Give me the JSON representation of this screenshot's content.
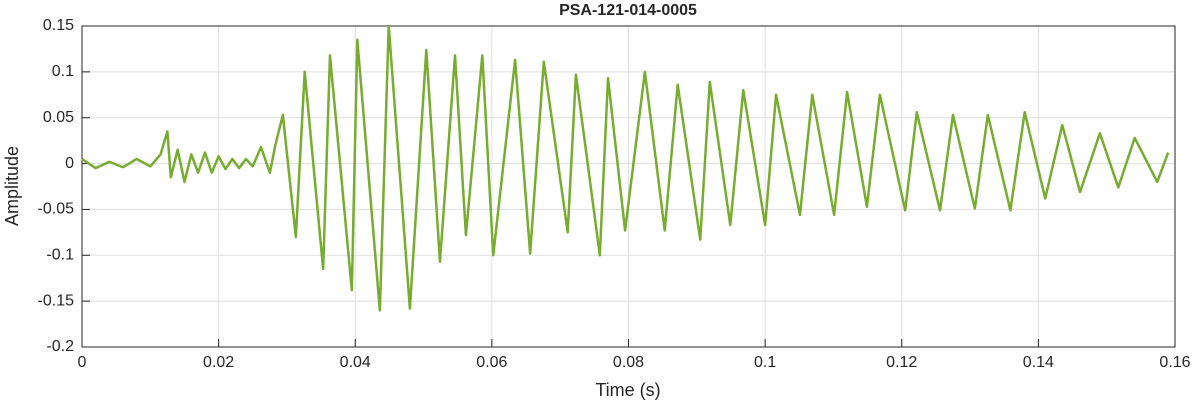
{
  "chart_data": {
    "type": "line",
    "title": "PSA-121-014-0005",
    "xlabel": "Time (s)",
    "ylabel": "Amplitude",
    "series": [
      {
        "name": "Amplitude",
        "color": "#77ac30",
        "x": [
          0,
          0.002,
          0.004,
          0.006,
          0.008,
          0.01,
          0.0115,
          0.0125,
          0.013,
          0.014,
          0.015,
          0.016,
          0.017,
          0.018,
          0.019,
          0.02,
          0.021,
          0.022,
          0.023,
          0.024,
          0.025,
          0.0262,
          0.0275,
          0.0283,
          0.0294,
          0.0313,
          0.0326,
          0.0353,
          0.0363,
          0.0395,
          0.0403,
          0.0436,
          0.0449,
          0.048,
          0.0504,
          0.0524,
          0.0546,
          0.0562,
          0.0586,
          0.0602,
          0.0634,
          0.0656,
          0.0676,
          0.0711,
          0.0723,
          0.0758,
          0.077,
          0.0795,
          0.0824,
          0.0853,
          0.0872,
          0.0905,
          0.0919,
          0.0949,
          0.0968,
          0.1,
          0.1016,
          0.1051,
          0.1069,
          0.1101,
          0.112,
          0.1149,
          0.1168,
          0.1205,
          0.1222,
          0.1256,
          0.1275,
          0.1307,
          0.1326,
          0.1359,
          0.138,
          0.141,
          0.1435,
          0.1461,
          0.149,
          0.1517,
          0.1541,
          0.1574,
          0.159
        ],
        "values": [
          0.005,
          -0.005,
          0.002,
          -0.004,
          0.005,
          -0.003,
          0.01,
          0.035,
          -0.015,
          0.015,
          -0.02,
          0.01,
          -0.01,
          0.012,
          -0.01,
          0.008,
          -0.006,
          0.005,
          -0.005,
          0.005,
          -0.003,
          0.018,
          -0.01,
          0.02,
          0.053,
          -0.08,
          0.1,
          -0.115,
          0.118,
          -0.138,
          0.135,
          -0.16,
          0.15,
          -0.158,
          0.124,
          -0.107,
          0.118,
          -0.078,
          0.118,
          -0.1,
          0.113,
          -0.098,
          0.111,
          -0.075,
          0.097,
          -0.1,
          0.093,
          -0.073,
          0.1,
          -0.073,
          0.086,
          -0.083,
          0.089,
          -0.067,
          0.08,
          -0.067,
          0.075,
          -0.056,
          0.075,
          -0.056,
          0.078,
          -0.047,
          0.075,
          -0.051,
          0.056,
          -0.051,
          0.053,
          -0.049,
          0.053,
          -0.051,
          0.056,
          -0.038,
          0.042,
          -0.031,
          0.033,
          -0.026,
          0.028,
          -0.02,
          0.012
        ]
      }
    ],
    "xlim": [
      0,
      0.16
    ],
    "xticks": [
      0,
      0.02,
      0.04,
      0.06,
      0.08,
      0.1,
      0.12,
      0.14,
      0.16
    ],
    "ylim": [
      -0.2,
      0.15
    ],
    "yticks": [
      -0.2,
      -0.15,
      -0.1,
      -0.05,
      0,
      0.05,
      0.1,
      0.15
    ],
    "grid": true
  }
}
